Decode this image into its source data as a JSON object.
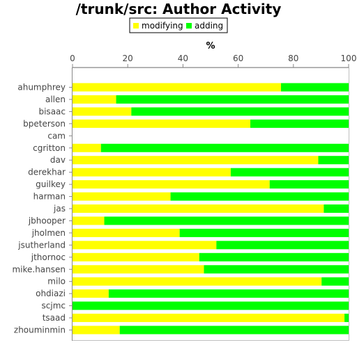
{
  "chart_data": {
    "type": "bar",
    "orientation": "horizontal",
    "stacked": true,
    "title": "/trunk/src: Author Activity",
    "xlabel": "%",
    "xlim": [
      0,
      100
    ],
    "x_ticks": [
      "0",
      "20",
      "40",
      "60",
      "80",
      "100"
    ],
    "x_axis_position": "top",
    "legend_position": "top-center",
    "grid": false,
    "categories": [
      "ahumphrey",
      "allen",
      "bisaac",
      "bpeterson",
      "cam",
      "cgritton",
      "dav",
      "derekhar",
      "guilkey",
      "harman",
      "jas",
      "jbhooper",
      "jholmen",
      "jsutherland",
      "jthornoc",
      "mike.hansen",
      "milo",
      "ohdiazi",
      "scjmc",
      "tsaad",
      "zhouminmin"
    ],
    "series": [
      {
        "name": "modifying",
        "color": "#ffff00",
        "values": [
          75.5,
          15.8,
          21.3,
          64.4,
          0,
          10.3,
          89,
          57.3,
          71.4,
          35.5,
          91,
          11.5,
          38.8,
          52.1,
          45.9,
          47.6,
          90.2,
          13.1,
          0,
          98.5,
          17.1
        ]
      },
      {
        "name": "adding",
        "color": "#00ff00",
        "values": [
          24.5,
          84.2,
          78.7,
          35.6,
          0,
          89.7,
          11,
          42.7,
          28.6,
          64.5,
          9,
          88.5,
          61.2,
          47.9,
          54.1,
          52.4,
          9.8,
          86.9,
          100,
          1.5,
          82.9
        ]
      }
    ]
  }
}
